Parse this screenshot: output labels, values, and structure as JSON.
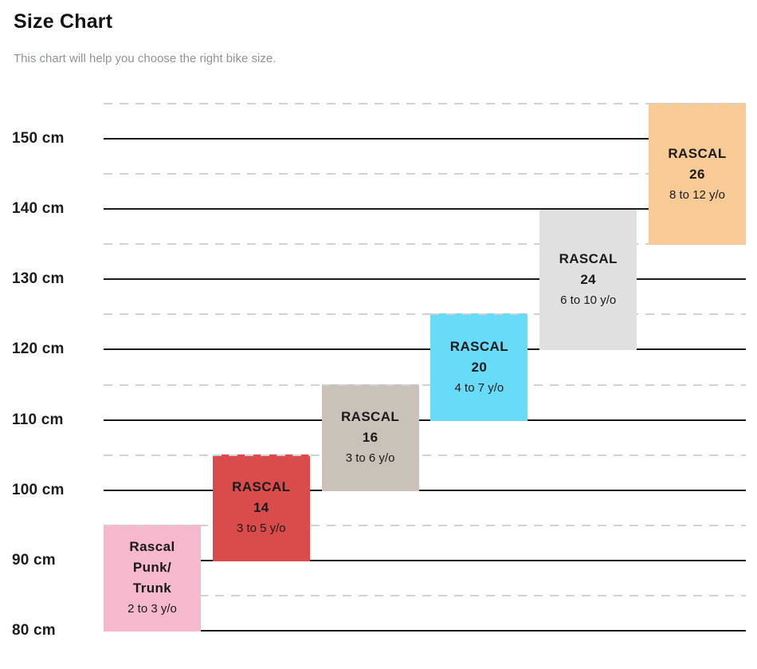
{
  "page": {
    "title": "Size Chart",
    "subtitle": "This chart will help you choose the right bike size."
  },
  "chart_data": {
    "type": "bar",
    "subtype": "vertical-floating-range-bars",
    "title": "Size Chart",
    "subtitle": "This chart will help you choose the right bike size.",
    "y_unit": "cm",
    "y_min": 80,
    "y_max": 155,
    "y_major_step": 10,
    "y_minor_step": 5,
    "tick_labels": [
      "150 cm",
      "140 cm",
      "130 cm",
      "120 cm",
      "110 cm",
      "100 cm",
      "90 cm",
      "80 cm"
    ],
    "grid": {
      "major_style": "solid",
      "minor_style": "dashed",
      "legend": "none"
    },
    "colors": {
      "grid_major": "#1a1a1a",
      "grid_minor": "#d1d1d1",
      "text": "#1a1a1a",
      "title": "#131313",
      "subtitle": "#8d929b"
    },
    "bars": [
      {
        "id": "rascal-punk-trunk",
        "name_lines": [
          "Rascal",
          "Punk/",
          "Trunk"
        ],
        "age": "2 to 3 y/o",
        "height_from_cm": 80,
        "height_to_cm": 95,
        "color": "#f5b8cd"
      },
      {
        "id": "rascal-14",
        "name_lines": [
          "RASCAL",
          "14"
        ],
        "age": "3 to 5 y/o",
        "height_from_cm": 90,
        "height_to_cm": 105,
        "color": "#da4c4c"
      },
      {
        "id": "rascal-16",
        "name_lines": [
          "RASCAL",
          "16"
        ],
        "age": "3 to 6 y/o",
        "height_from_cm": 100,
        "height_to_cm": 115,
        "color": "#c9c2b8"
      },
      {
        "id": "rascal-20",
        "name_lines": [
          "RASCAL",
          "20"
        ],
        "age": "4 to 7 y/o",
        "height_from_cm": 110,
        "height_to_cm": 125,
        "color": "#67dbf7"
      },
      {
        "id": "rascal-24",
        "name_lines": [
          "RASCAL",
          "24"
        ],
        "age": "6 to 10 y/o",
        "height_from_cm": 120,
        "height_to_cm": 140,
        "color": "#e0e0e0"
      },
      {
        "id": "rascal-26",
        "name_lines": [
          "RASCAL",
          "26"
        ],
        "age": "8 to 12 y/o",
        "height_from_cm": 135,
        "height_to_cm": 155,
        "color": "#f7ca96"
      }
    ]
  }
}
